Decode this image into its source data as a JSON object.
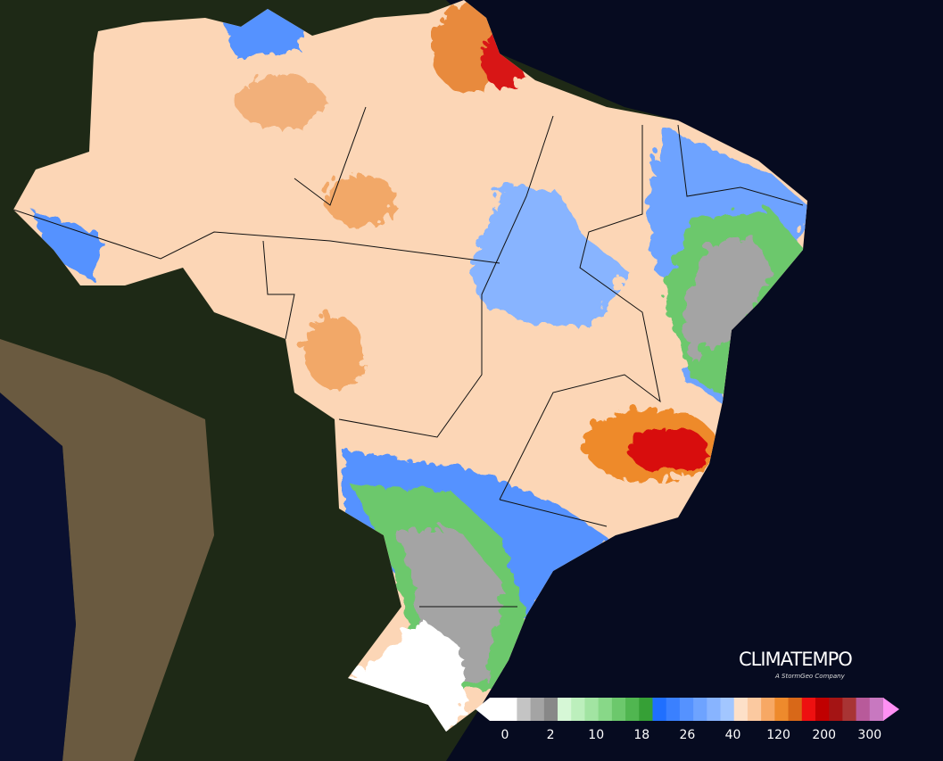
{
  "logo": {
    "name": "CLIMATEMPO",
    "tagline": "A StormGeo Company"
  },
  "legend": {
    "labels": [
      0,
      2,
      10,
      18,
      26,
      40,
      120,
      200,
      300
    ],
    "colors": [
      "#ffffff",
      "#ffffff",
      "#c4c4c4",
      "#a4a4a4",
      "#888888",
      "#d6f7d6",
      "#bcefbc",
      "#a2e4a2",
      "#88d888",
      "#6cc86c",
      "#50b650",
      "#36a036",
      "#1f6fff",
      "#3a80ff",
      "#5592ff",
      "#6ea3ff",
      "#88b4ff",
      "#a2c6ff",
      "#fde0c8",
      "#fbc9a0",
      "#f7a864",
      "#ee8a2c",
      "#d86818",
      "#ee1010",
      "#c00000",
      "#a41414",
      "#a83434",
      "#b85a9a",
      "#c878c0"
    ],
    "low_color": "#ffffff",
    "high_color": "#ff90f4"
  }
}
